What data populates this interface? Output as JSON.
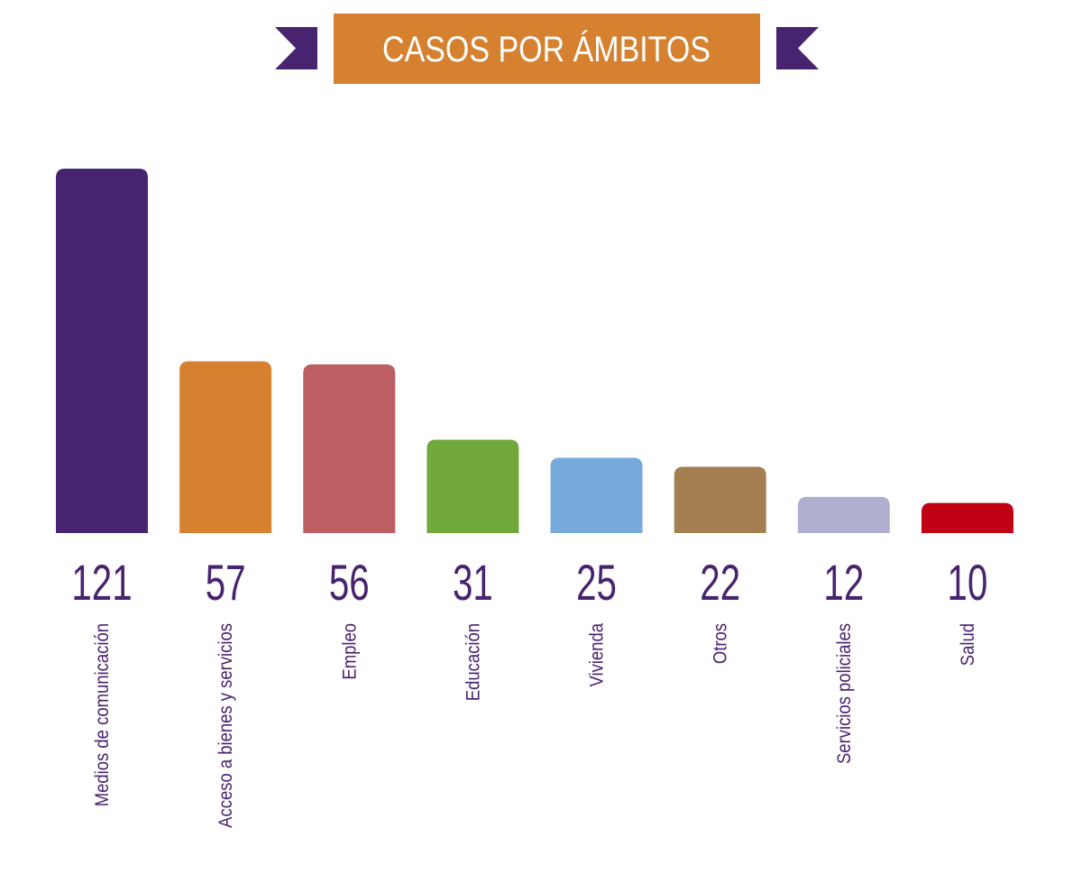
{
  "chart_data": {
    "type": "bar",
    "title": "CASOS POR ÁMBITOS",
    "categories": [
      "Medios de comunicación",
      "Acceso a bienes y servicios",
      "Empleo",
      "Educación",
      "Vivienda",
      "Otros",
      "Servicios policiales",
      "Salud"
    ],
    "values": [
      121,
      57,
      56,
      31,
      25,
      22,
      12,
      10
    ],
    "value_labels": [
      "121",
      "57",
      "56",
      "31",
      "25",
      "22",
      "12",
      "10"
    ],
    "colors": [
      "#48236f",
      "#d5812f",
      "#bc5e62",
      "#70a83c",
      "#77aadb",
      "#a47f52",
      "#b1afd0",
      "#c00214"
    ],
    "xlabel": "",
    "ylabel": "",
    "ylim": [
      0,
      121
    ],
    "grid": false,
    "legend": "none"
  },
  "theme": {
    "banner_color": "#d5812f",
    "ribbon_color": "#48236f",
    "text_color": "#48236f",
    "title_text_color": "#ffffff"
  }
}
